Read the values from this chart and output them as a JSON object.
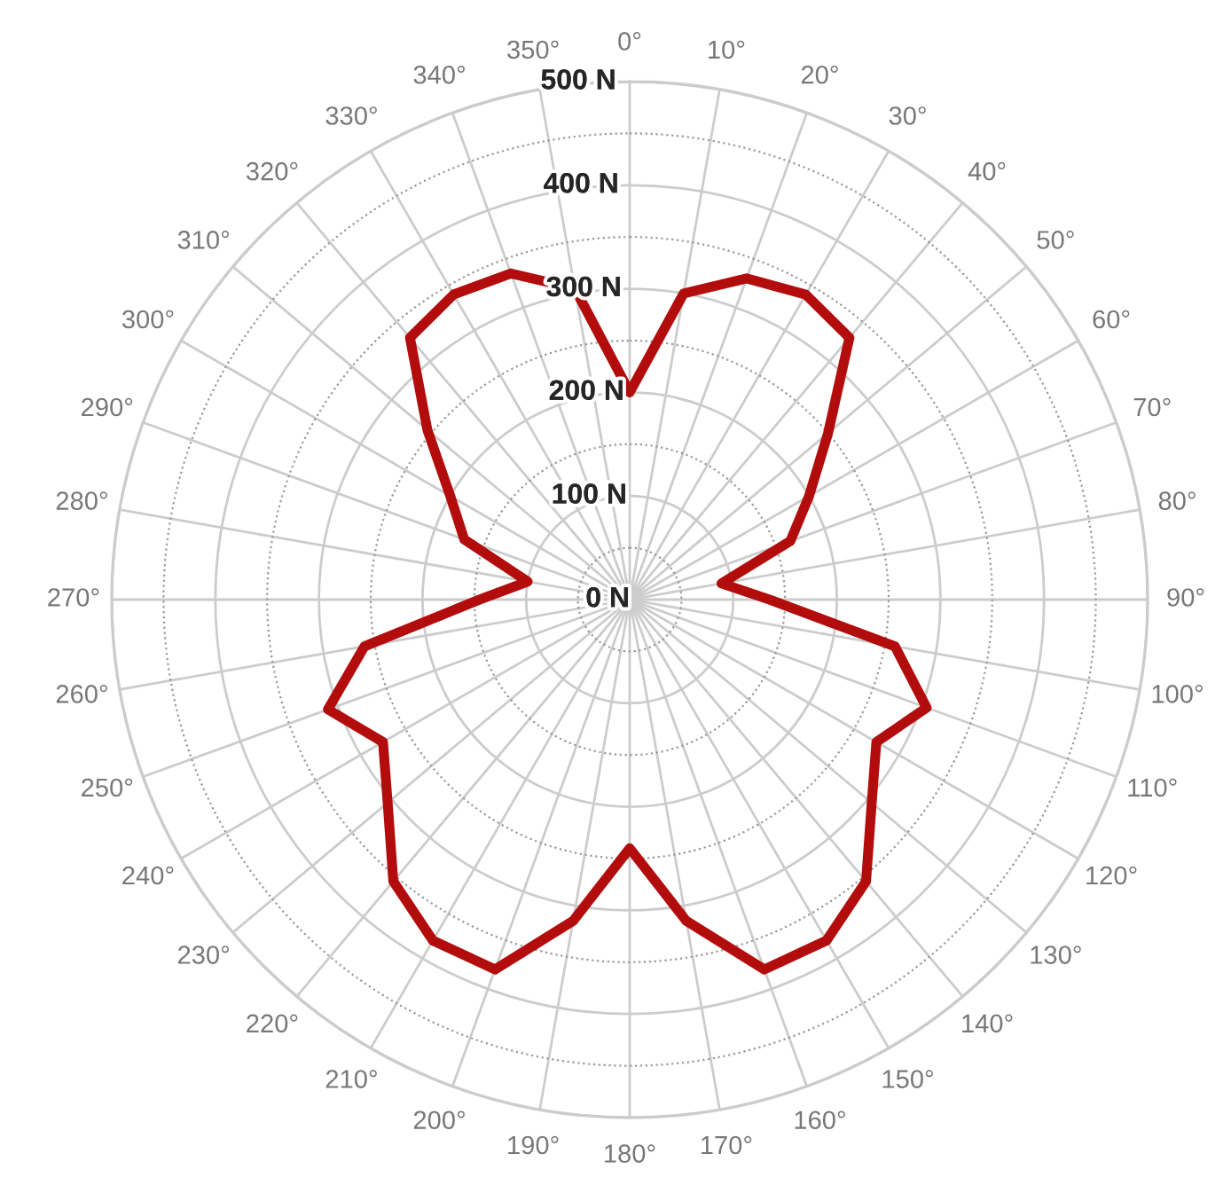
{
  "chart_data": {
    "type": "radar",
    "categories": [
      "0°",
      "10°",
      "20°",
      "30°",
      "40°",
      "50°",
      "60°",
      "70°",
      "80°",
      "90°",
      "100°",
      "110°",
      "120°",
      "130°",
      "140°",
      "150°",
      "160°",
      "170°",
      "180°",
      "190°",
      "200°",
      "210°",
      "220°",
      "230°",
      "240°",
      "250°",
      "260°",
      "270°",
      "280°",
      "290°",
      "300°",
      "310°",
      "320°",
      "330°",
      "340°",
      "350°"
    ],
    "series": [
      {
        "color": "#b30c0c",
        "values": [
          200,
          300,
          330,
          340,
          330,
          250,
          200,
          165,
          90,
          135,
          260,
          305,
          275,
          305,
          355,
          380,
          380,
          315,
          240,
          315,
          380,
          380,
          355,
          305,
          275,
          310,
          260,
          145,
          100,
          170,
          200,
          255,
          330,
          340,
          335,
          305
        ]
      }
    ],
    "ylim": [
      0,
      500
    ],
    "yticks": [
      {
        "value": 0,
        "label": "0 N"
      },
      {
        "value": 100,
        "label": "100 N"
      },
      {
        "value": 200,
        "label": "200 N"
      },
      {
        "value": 300,
        "label": "300 N"
      },
      {
        "value": 400,
        "label": "400 N"
      },
      {
        "value": 500,
        "label": "500 N"
      }
    ],
    "grid": true,
    "marker": "none",
    "line_style": "solid"
  }
}
